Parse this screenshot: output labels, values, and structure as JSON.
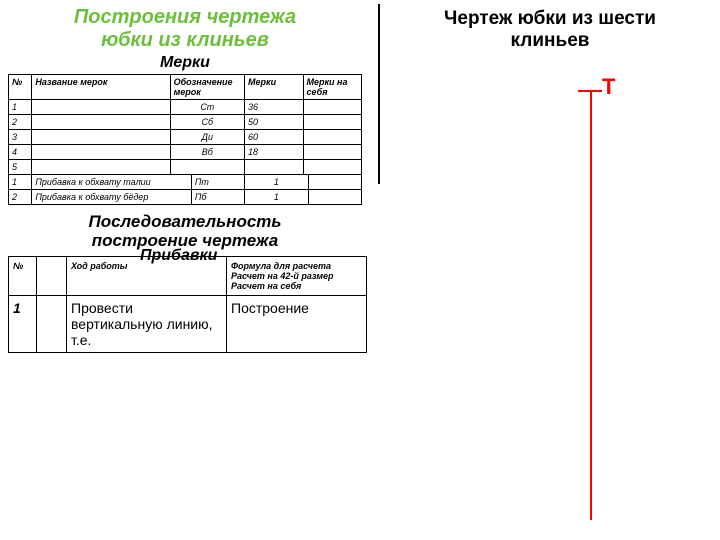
{
  "left": {
    "title_l1": "Построения чертежа",
    "title_l2": "юбки из клиньев",
    "merki_label": "Мерки",
    "pribavki_label": "Прибавки",
    "tbl1": {
      "headers": {
        "c0": "№",
        "c1": "Название мерок",
        "c2": "Обозначение мерок",
        "c3": "Мерки",
        "c4": "Мерки на себя"
      },
      "rows": [
        {
          "n": "1",
          "name": "",
          "oboz": "Ст",
          "m": "36",
          "self": ""
        },
        {
          "n": "2",
          "name": "",
          "oboz": "Сб",
          "m": "50",
          "self": ""
        },
        {
          "n": "3",
          "name": "",
          "oboz": "Ди",
          "m": "60",
          "self": ""
        },
        {
          "n": "4",
          "name": "",
          "oboz": "Вб",
          "m": "18",
          "self": ""
        },
        {
          "n": "5",
          "name": "",
          "oboz": "",
          "m": "",
          "self": ""
        }
      ]
    },
    "tbl2": {
      "rows": [
        {
          "n": "1",
          "name": "Прибавка к обхвату талии",
          "oboz": "Пт",
          "v": "1",
          "self": ""
        },
        {
          "n": "2",
          "name": "Прибавка к обхвату бёдер",
          "oboz": "Пб",
          "v": "1",
          "self": ""
        }
      ]
    },
    "seq_title_l1": "Последовательность",
    "seq_title_l2": "построение чертежа",
    "tbl3": {
      "headers": {
        "c0": "№",
        "c1": "",
        "c2": "Ход работы",
        "c3": "Формула для расчета Расчет на 42-й размер Расчет на себя"
      },
      "rows": [
        {
          "n": "1",
          "img": "",
          "work": "Провести вертикальную линию, т.е.",
          "formula": "Построение"
        }
      ]
    }
  },
  "right": {
    "title_l1": "Чертеж юбки из шести",
    "title_l2": "клиньев",
    "t_label": "Т"
  },
  "colors": {
    "title_green": "#6BBF3A",
    "red": "#ff0000",
    "black": "#000000",
    "bg": "#ffffff"
  }
}
